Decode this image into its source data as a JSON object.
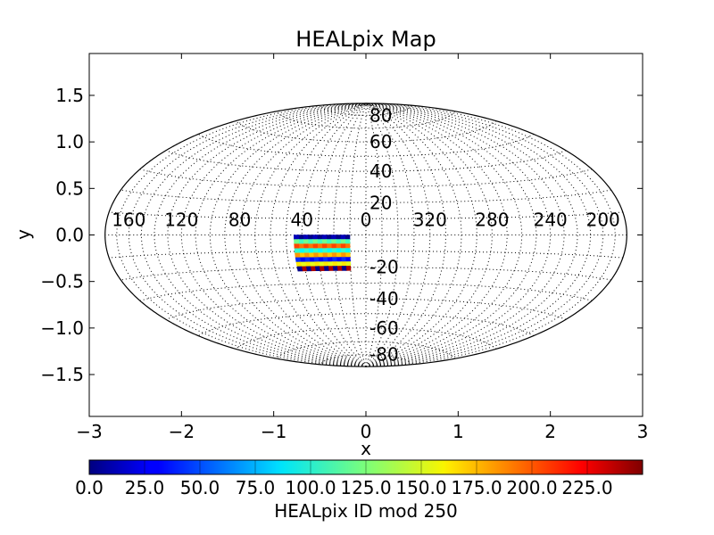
{
  "chart_data": {
    "type": "heatmap",
    "projection": "hammer-aitoff",
    "title": "HEALpix Map",
    "xlabel": "x",
    "ylabel": "y",
    "xlim": [
      -3,
      3
    ],
    "ylim": [
      -1.95,
      1.95
    ],
    "xticks": [
      -3,
      -2,
      -1,
      0,
      1,
      2,
      3
    ],
    "xtick_labels": [
      "−3",
      "−2",
      "−1",
      "0",
      "1",
      "2",
      "3"
    ],
    "yticks": [
      -1.5,
      -1.0,
      -0.5,
      0.0,
      0.5,
      1.0,
      1.5
    ],
    "ytick_labels": [
      "−1.5",
      "−1.0",
      "−0.5",
      "0.0",
      "0.5",
      "1.0",
      "1.5"
    ],
    "grid": true,
    "meridian_labels_deg": [
      200,
      240,
      280,
      320,
      0,
      40,
      80,
      120,
      160
    ],
    "meridian_label_text": [
      "200",
      "240",
      "280",
      "320",
      "0",
      "40",
      "80",
      "120",
      "160"
    ],
    "parallel_labels_deg": [
      80,
      60,
      40,
      20,
      -20,
      -40,
      -60,
      -80
    ],
    "parallel_label_text": [
      "80",
      "60",
      "40",
      "20",
      "-20",
      "-40",
      "-60",
      "-80"
    ],
    "pixel_region": {
      "lon_min_deg": 10,
      "lon_max_deg": 45,
      "lat_min_deg": -22,
      "lat_max_deg": 0,
      "columns": 12,
      "rows": 8,
      "row_values": [
        2,
        110,
        190,
        95,
        170,
        30,
        150,
        240
      ]
    },
    "colorbar": {
      "label": "HEALpix ID mod 250",
      "min": 0,
      "max": 250,
      "ticks": [
        0,
        25,
        50,
        75,
        100,
        125,
        150,
        175,
        200,
        225
      ],
      "tick_labels": [
        "0.0",
        "25.0",
        "50.0",
        "75.0",
        "100.0",
        "125.0",
        "150.0",
        "175.0",
        "200.0",
        "225.0"
      ],
      "colormap": "jet"
    }
  }
}
